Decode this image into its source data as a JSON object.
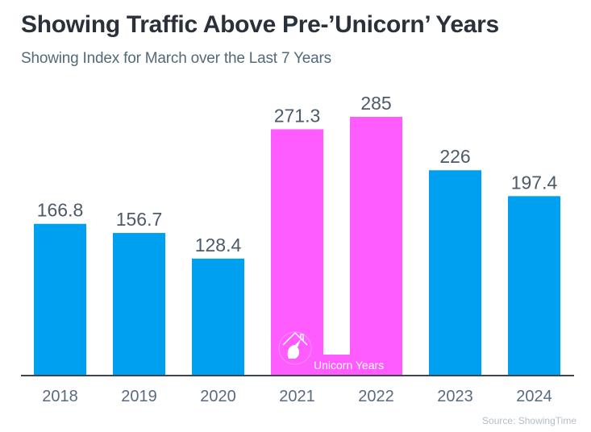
{
  "header": {
    "title": "Showing Traffic Above Pre-’Unicorn’ Years",
    "subtitle": "Showing Index for March over the Last 7 Years"
  },
  "source": "Source: ShowingTime",
  "annotation": {
    "label": "Unicorn Years",
    "icon": "unicorn-house-icon",
    "years": [
      "2021",
      "2022"
    ]
  },
  "colors": {
    "normal": "#00A0F0",
    "unicorn": "#FF5CFF",
    "axis": "#3d4550"
  },
  "chart_data": {
    "type": "bar",
    "title": "Showing Traffic Above Pre-’Unicorn’ Years",
    "subtitle": "Showing Index for March over the Last 7 Years",
    "xlabel": "",
    "ylabel": "",
    "categories": [
      "2018",
      "2019",
      "2020",
      "2021",
      "2022",
      "2023",
      "2024"
    ],
    "values": [
      166.8,
      156.7,
      128.4,
      271.3,
      285,
      226,
      197.4
    ],
    "labels": [
      "166.8",
      "156.7",
      "128.4",
      "271.3",
      "285",
      "226",
      "197.4"
    ],
    "highlighted": [
      false,
      false,
      false,
      true,
      true,
      false,
      false
    ],
    "ylim": [
      0,
      285
    ],
    "grid": false,
    "legend": "none"
  }
}
